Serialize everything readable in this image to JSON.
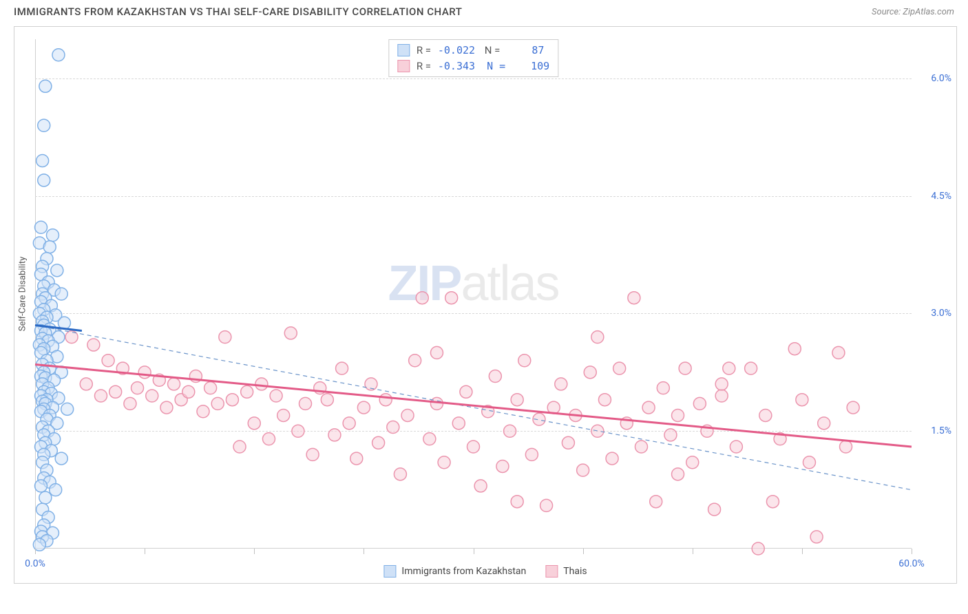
{
  "title": "IMMIGRANTS FROM KAZAKHSTAN VS THAI SELF-CARE DISABILITY CORRELATION CHART",
  "source": "Source: ZipAtlas.com",
  "watermark": {
    "part1": "ZIP",
    "part2": "atlas"
  },
  "chart": {
    "type": "scatter",
    "xlim": [
      0,
      60
    ],
    "ylim": [
      0,
      6.5
    ],
    "x_ticks": [
      0,
      7.5,
      15,
      22.5,
      30,
      37.5,
      45,
      52.5,
      60
    ],
    "x_tick_labels": {
      "0": "0.0%",
      "60": "60.0%"
    },
    "y_gridlines": [
      1.5,
      3.0,
      4.5,
      6.0
    ],
    "y_tick_labels": {
      "1.5": "1.5%",
      "3.0": "3.0%",
      "4.5": "4.5%",
      "6.0": "6.0%"
    },
    "ylabel": "Self-Care Disability",
    "background_color": "#ffffff",
    "grid_color": "#d8d8d8",
    "axis_color": "#cfcfcf",
    "marker_radius": 9,
    "marker_stroke_width": 1.5,
    "series": [
      {
        "key": "kazakhstan",
        "label": "Immigrants from Kazakhstan",
        "fill": "#cfe1f7",
        "stroke": "#7fb0e6",
        "fill_opacity": 0.55,
        "R": "-0.022",
        "N": "87",
        "trend_solid": {
          "x1": 0,
          "y1": 2.85,
          "x2": 3.2,
          "y2": 2.78,
          "color": "#2a69c4",
          "width": 3
        },
        "trend_dashed": {
          "x1": 0,
          "y1": 2.85,
          "x2": 60,
          "y2": 0.75,
          "color": "#6a93c9",
          "width": 1.2,
          "dash": "6 5"
        },
        "points": [
          [
            1.6,
            6.3
          ],
          [
            0.7,
            5.9
          ],
          [
            0.6,
            5.4
          ],
          [
            0.5,
            4.95
          ],
          [
            0.6,
            4.7
          ],
          [
            0.4,
            4.1
          ],
          [
            1.2,
            4.0
          ],
          [
            0.3,
            3.9
          ],
          [
            1.0,
            3.85
          ],
          [
            0.8,
            3.7
          ],
          [
            0.5,
            3.6
          ],
          [
            1.5,
            3.55
          ],
          [
            0.4,
            3.5
          ],
          [
            0.9,
            3.4
          ],
          [
            0.6,
            3.35
          ],
          [
            1.3,
            3.3
          ],
          [
            0.5,
            3.25
          ],
          [
            1.8,
            3.25
          ],
          [
            0.7,
            3.2
          ],
          [
            0.4,
            3.15
          ],
          [
            1.1,
            3.1
          ],
          [
            0.6,
            3.05
          ],
          [
            0.3,
            3.0
          ],
          [
            1.4,
            2.98
          ],
          [
            0.8,
            2.95
          ],
          [
            0.5,
            2.9
          ],
          [
            2.0,
            2.88
          ],
          [
            0.6,
            2.85
          ],
          [
            1.0,
            2.8
          ],
          [
            0.4,
            2.78
          ],
          [
            0.7,
            2.75
          ],
          [
            1.6,
            2.7
          ],
          [
            0.5,
            2.68
          ],
          [
            0.9,
            2.65
          ],
          [
            0.3,
            2.6
          ],
          [
            1.2,
            2.58
          ],
          [
            0.6,
            2.55
          ],
          [
            0.4,
            2.5
          ],
          [
            1.5,
            2.45
          ],
          [
            0.8,
            2.4
          ],
          [
            0.5,
            2.35
          ],
          [
            1.0,
            2.3
          ],
          [
            0.6,
            2.25
          ],
          [
            1.8,
            2.25
          ],
          [
            0.4,
            2.2
          ],
          [
            0.7,
            2.18
          ],
          [
            1.3,
            2.15
          ],
          [
            0.5,
            2.1
          ],
          [
            0.9,
            2.05
          ],
          [
            0.6,
            2.0
          ],
          [
            1.1,
            1.98
          ],
          [
            0.4,
            1.95
          ],
          [
            1.6,
            1.92
          ],
          [
            0.8,
            1.9
          ],
          [
            0.5,
            1.88
          ],
          [
            0.7,
            1.85
          ],
          [
            1.2,
            1.8
          ],
          [
            0.6,
            1.78
          ],
          [
            2.2,
            1.78
          ],
          [
            0.4,
            1.75
          ],
          [
            1.0,
            1.7
          ],
          [
            0.8,
            1.65
          ],
          [
            1.5,
            1.6
          ],
          [
            0.5,
            1.55
          ],
          [
            0.9,
            1.5
          ],
          [
            0.6,
            1.45
          ],
          [
            1.3,
            1.4
          ],
          [
            0.7,
            1.35
          ],
          [
            0.4,
            1.3
          ],
          [
            1.1,
            1.25
          ],
          [
            0.6,
            1.2
          ],
          [
            1.8,
            1.15
          ],
          [
            0.5,
            1.1
          ],
          [
            0.8,
            1.0
          ],
          [
            0.6,
            0.9
          ],
          [
            1.0,
            0.85
          ],
          [
            0.4,
            0.8
          ],
          [
            1.4,
            0.75
          ],
          [
            0.7,
            0.65
          ],
          [
            0.5,
            0.5
          ],
          [
            0.9,
            0.4
          ],
          [
            0.6,
            0.3
          ],
          [
            0.4,
            0.22
          ],
          [
            1.2,
            0.2
          ],
          [
            0.5,
            0.15
          ],
          [
            0.8,
            0.1
          ],
          [
            0.3,
            0.05
          ]
        ]
      },
      {
        "key": "thais",
        "label": "Thais",
        "fill": "#f8d0da",
        "stroke": "#eb94ad",
        "fill_opacity": 0.55,
        "R": "-0.343",
        "N": "109",
        "trend_solid": {
          "x1": 0,
          "y1": 2.35,
          "x2": 60,
          "y2": 1.3,
          "color": "#e35a87",
          "width": 3
        },
        "points": [
          [
            2.5,
            2.7
          ],
          [
            3.5,
            2.1
          ],
          [
            4.0,
            2.6
          ],
          [
            4.5,
            1.95
          ],
          [
            5.0,
            2.4
          ],
          [
            5.5,
            2.0
          ],
          [
            6.0,
            2.3
          ],
          [
            6.5,
            1.85
          ],
          [
            7.0,
            2.05
          ],
          [
            7.5,
            2.25
          ],
          [
            8.0,
            1.95
          ],
          [
            8.5,
            2.15
          ],
          [
            9.0,
            1.8
          ],
          [
            9.5,
            2.1
          ],
          [
            10.0,
            1.9
          ],
          [
            10.5,
            2.0
          ],
          [
            11.0,
            2.2
          ],
          [
            11.5,
            1.75
          ],
          [
            12.0,
            2.05
          ],
          [
            12.5,
            1.85
          ],
          [
            13.0,
            2.7
          ],
          [
            13.5,
            1.9
          ],
          [
            14.0,
            1.3
          ],
          [
            14.5,
            2.0
          ],
          [
            15.0,
            1.6
          ],
          [
            15.5,
            2.1
          ],
          [
            16.0,
            1.4
          ],
          [
            16.5,
            1.95
          ],
          [
            17.0,
            1.7
          ],
          [
            17.5,
            2.75
          ],
          [
            18.0,
            1.5
          ],
          [
            18.5,
            1.85
          ],
          [
            19.0,
            1.2
          ],
          [
            19.5,
            2.05
          ],
          [
            20.0,
            1.9
          ],
          [
            20.5,
            1.45
          ],
          [
            21.0,
            2.3
          ],
          [
            21.5,
            1.6
          ],
          [
            22.0,
            1.15
          ],
          [
            22.5,
            1.8
          ],
          [
            23.0,
            2.1
          ],
          [
            23.5,
            1.35
          ],
          [
            24.0,
            1.9
          ],
          [
            24.5,
            1.55
          ],
          [
            25.0,
            0.95
          ],
          [
            25.5,
            1.7
          ],
          [
            26.0,
            2.4
          ],
          [
            26.5,
            3.2
          ],
          [
            27.0,
            1.4
          ],
          [
            27.5,
            1.85
          ],
          [
            28.0,
            1.1
          ],
          [
            28.5,
            3.2
          ],
          [
            29.0,
            1.6
          ],
          [
            29.5,
            2.0
          ],
          [
            30.0,
            1.3
          ],
          [
            30.5,
            0.8
          ],
          [
            31.0,
            1.75
          ],
          [
            31.5,
            2.2
          ],
          [
            32.0,
            1.05
          ],
          [
            32.5,
            1.5
          ],
          [
            33.0,
            1.9
          ],
          [
            33.5,
            2.4
          ],
          [
            34.0,
            1.2
          ],
          [
            34.5,
            1.65
          ],
          [
            35.0,
            0.55
          ],
          [
            35.5,
            1.8
          ],
          [
            36.0,
            2.1
          ],
          [
            36.5,
            1.35
          ],
          [
            37.0,
            1.7
          ],
          [
            37.5,
            1.0
          ],
          [
            38.0,
            2.25
          ],
          [
            38.5,
            1.5
          ],
          [
            39.0,
            1.9
          ],
          [
            39.5,
            1.15
          ],
          [
            40.0,
            2.3
          ],
          [
            40.5,
            1.6
          ],
          [
            41.0,
            3.2
          ],
          [
            41.5,
            1.3
          ],
          [
            42.0,
            1.8
          ],
          [
            42.5,
            0.6
          ],
          [
            43.0,
            2.05
          ],
          [
            43.5,
            1.45
          ],
          [
            44.0,
            1.7
          ],
          [
            44.5,
            2.3
          ],
          [
            45.0,
            1.1
          ],
          [
            45.5,
            1.85
          ],
          [
            46.0,
            1.5
          ],
          [
            46.5,
            0.5
          ],
          [
            47.0,
            1.95
          ],
          [
            47.5,
            2.3
          ],
          [
            48.0,
            1.3
          ],
          [
            49.0,
            2.3
          ],
          [
            50.0,
            1.7
          ],
          [
            50.5,
            0.6
          ],
          [
            51.0,
            1.4
          ],
          [
            52.0,
            2.55
          ],
          [
            52.5,
            1.9
          ],
          [
            53.0,
            1.1
          ],
          [
            53.5,
            0.15
          ],
          [
            54.0,
            1.6
          ],
          [
            55.0,
            2.5
          ],
          [
            55.5,
            1.3
          ],
          [
            49.5,
            0.0
          ],
          [
            56.0,
            1.8
          ],
          [
            47.0,
            2.1
          ],
          [
            38.5,
            2.7
          ],
          [
            33.0,
            0.6
          ],
          [
            27.5,
            2.5
          ],
          [
            44.0,
            0.95
          ]
        ]
      }
    ]
  },
  "colors": {
    "tick_label": "#3b6fd4",
    "text": "#444444"
  }
}
